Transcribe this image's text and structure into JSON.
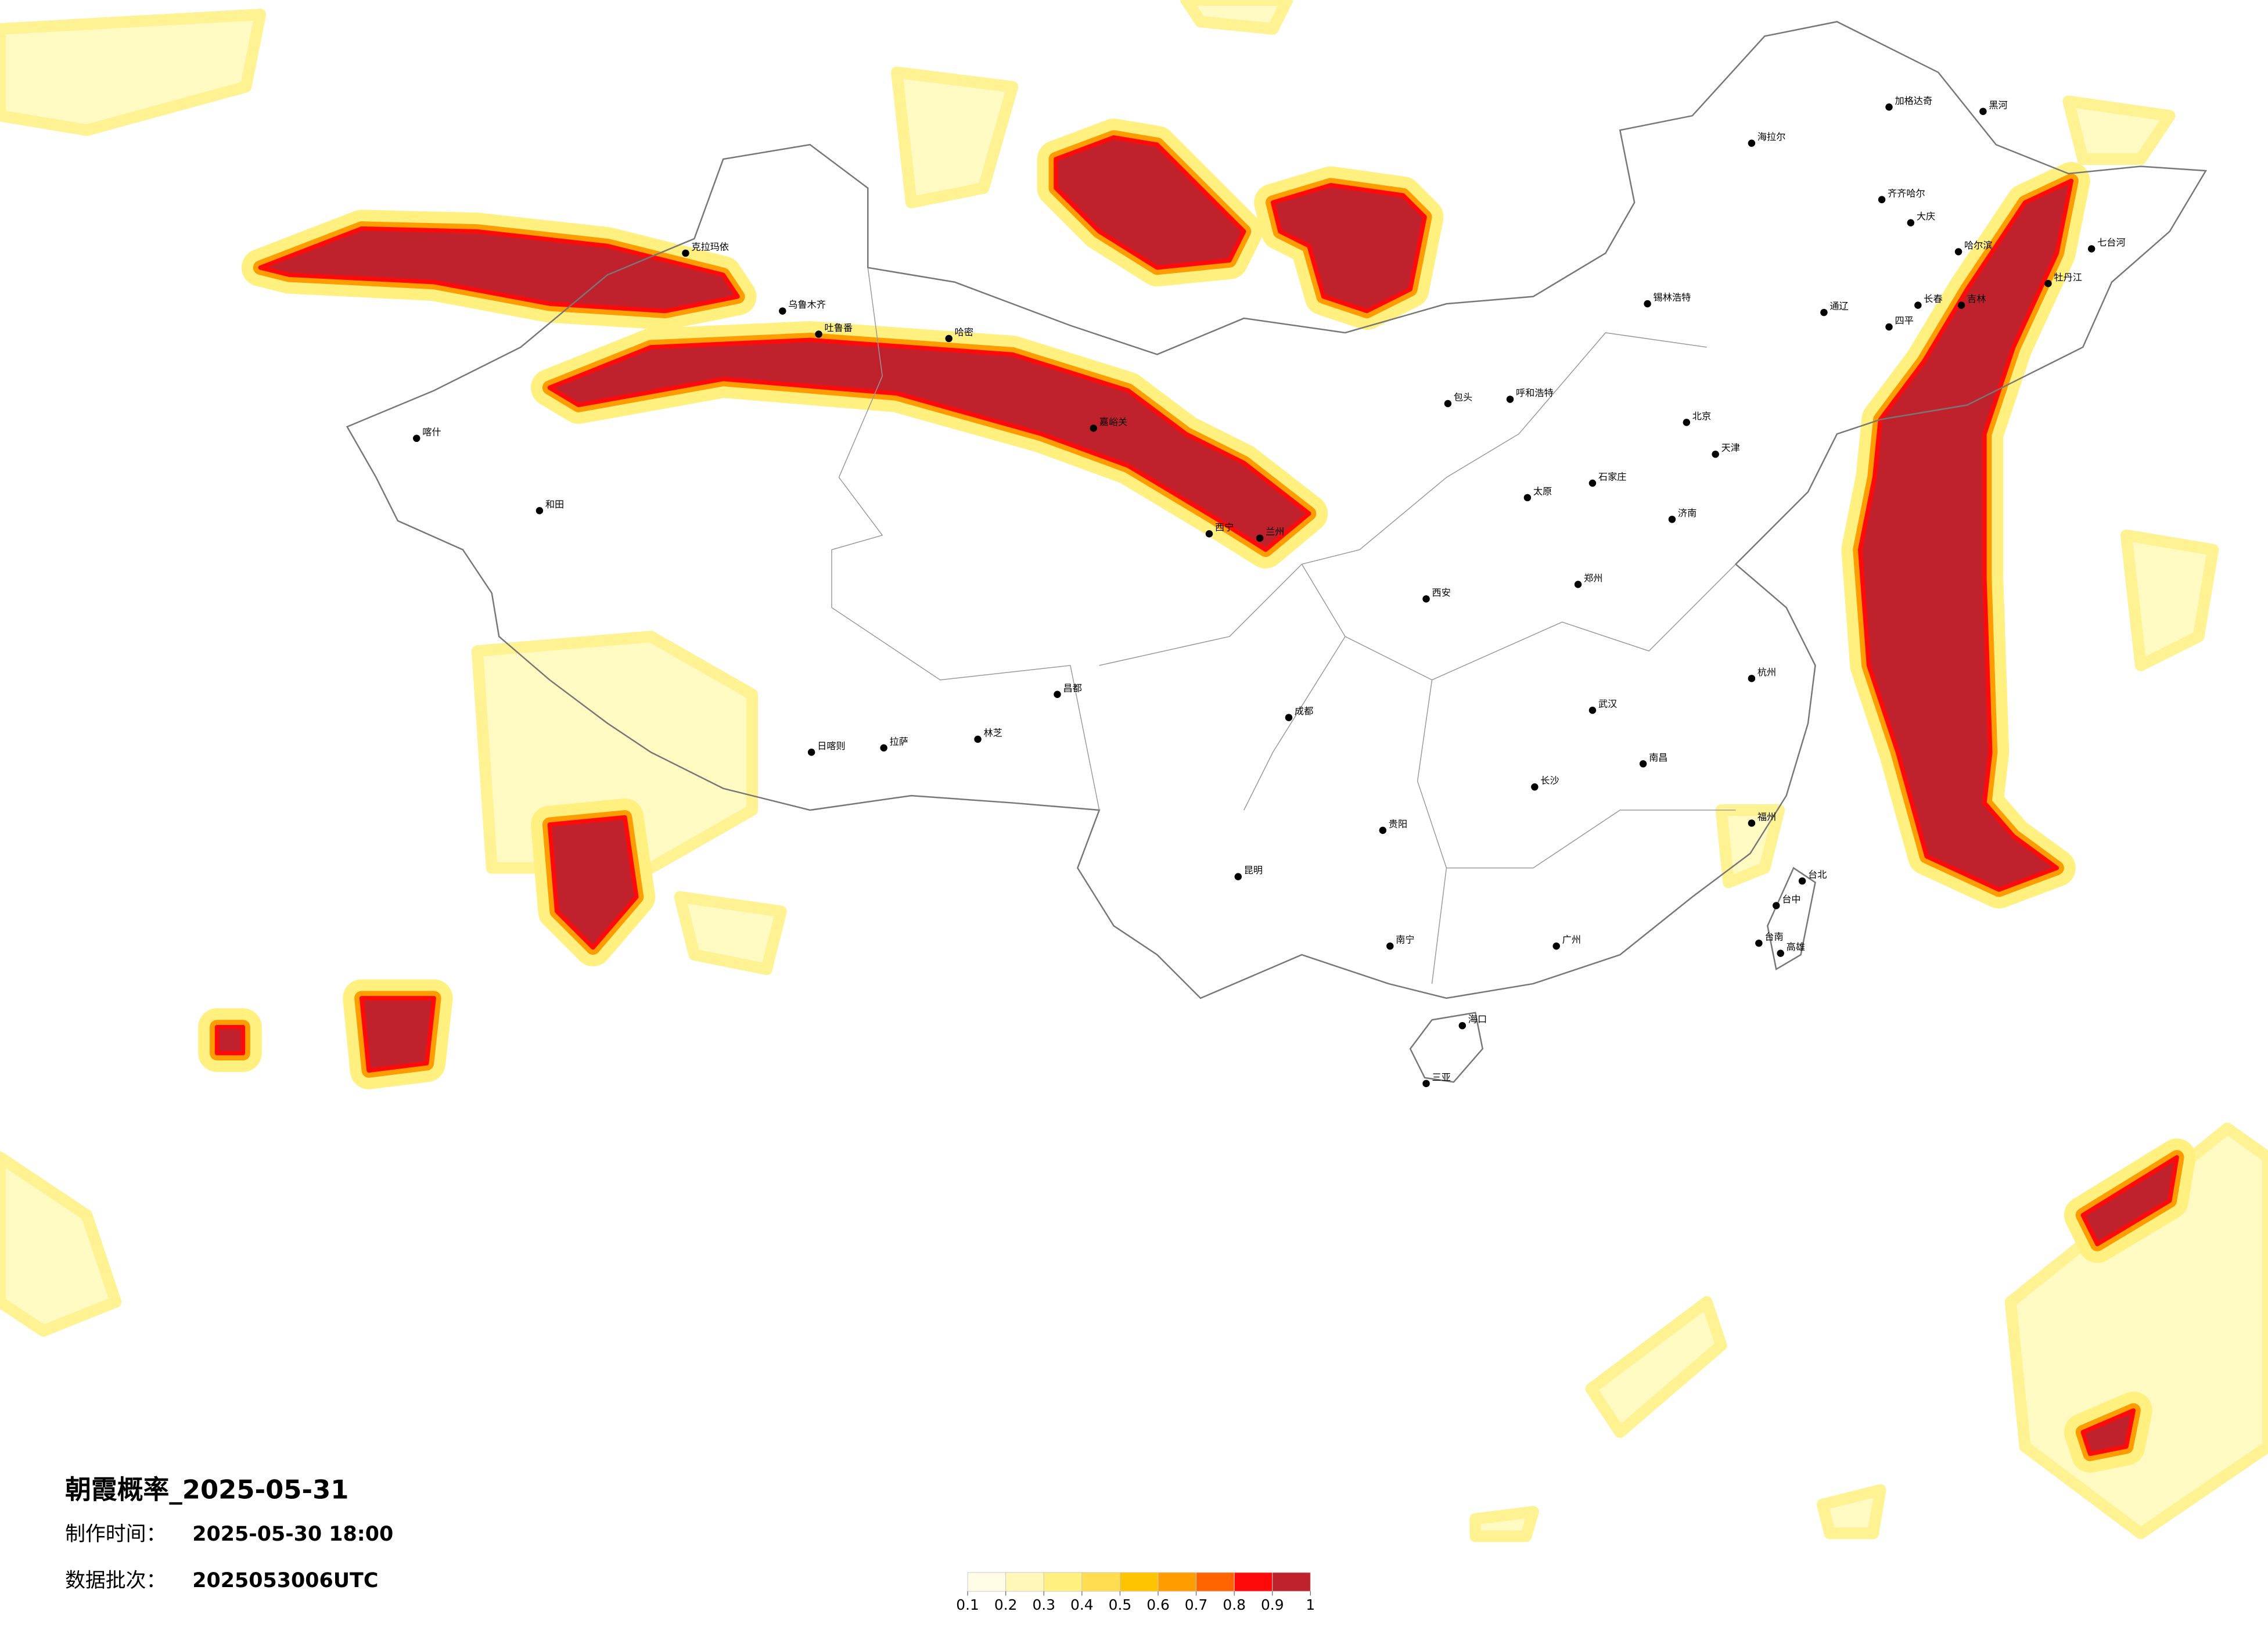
{
  "header": {
    "title": "朝霞概率_2025-05-31",
    "made_label": "制作时间：",
    "made_value": "2025-05-30 18:00",
    "batch_label": "数据批次：",
    "batch_value": "2025053006UTC"
  },
  "legend": {
    "ticks": [
      0.1,
      0.2,
      0.3,
      0.4,
      0.5,
      0.6,
      0.7,
      0.8,
      0.9,
      1
    ],
    "colors": [
      "#fffce6",
      "#fff8b8",
      "#fff080",
      "#ffdc50",
      "#ffc400",
      "#ff9c00",
      "#ff6400",
      "#ff0a0a",
      "#c0222d"
    ]
  },
  "cities": [
    "克拉玛依",
    "乌鲁木齐",
    "吐鲁番",
    "哈密",
    "喀什",
    "和田",
    "嘉峪关",
    "海拉尔",
    "加格达奇",
    "黑河",
    "齐齐哈尔",
    "大庆",
    "哈尔滨",
    "牡丹江",
    "七台河",
    "长春",
    "吉林",
    "四平",
    "通辽",
    "锡林浩特",
    "呼和浩特",
    "包头",
    "北京",
    "天津",
    "石家庄",
    "太原",
    "济南",
    "郑州",
    "西安",
    "兰州",
    "西宁",
    "拉萨",
    "日喀则",
    "林芝",
    "昌都",
    "成都",
    "贵阳",
    "昆明",
    "南宁",
    "长沙",
    "武汉",
    "南昌",
    "杭州",
    "福州",
    "广州",
    "海口",
    "三亚",
    "台北",
    "台中",
    "台南",
    "高雄"
  ]
}
